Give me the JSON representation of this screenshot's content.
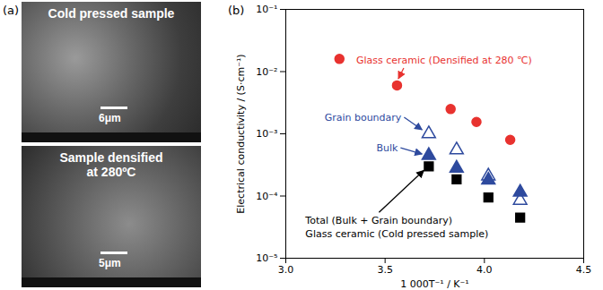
{
  "figure": {
    "panel_label": "(a)",
    "images": [
      {
        "title": [
          "Cold pressed sample"
        ],
        "scale_bar": "6μm"
      },
      {
        "title": [
          "Sample densified",
          "at 280ºC"
        ],
        "scale_bar": "5μm"
      }
    ]
  },
  "chart_data": {
    "type": "scatter",
    "panel_label": "(b)",
    "x_label": "1 000T⁻¹ / K⁻¹",
    "y_label": "Electrical conductivity / (S·cm⁻¹)",
    "log": "y",
    "xlim": [
      3.0,
      4.5
    ],
    "xticks": [
      {
        "value": 3.0,
        "label": "3.0"
      },
      {
        "value": 3.5,
        "label": "3.5"
      },
      {
        "value": 4.0,
        "label": "4.0"
      },
      {
        "value": 4.5,
        "label": "4.5"
      }
    ],
    "ylim": [
      1e-05,
      0.1
    ],
    "yticks": [
      {
        "value": 1e-05,
        "label": "10⁻⁵"
      },
      {
        "value": 0.0001,
        "label": "10⁻⁴"
      },
      {
        "value": 0.001,
        "label": "10⁻³"
      },
      {
        "value": 0.01,
        "label": "10⁻²"
      },
      {
        "value": 0.1,
        "label": "10⁻¹"
      }
    ],
    "series": [
      {
        "name": "Glass ceramic (Densified at 280 ℃)",
        "color": "#e8322f",
        "marker": "circle",
        "x": [
          3.27,
          3.56,
          3.83,
          3.96,
          4.13
        ],
        "values": [
          0.016,
          0.006,
          0.0025,
          0.00155,
          0.0008
        ]
      },
      {
        "name": "Grain boundary",
        "color": "#2e4a9e",
        "marker": "triangle-open",
        "x": [
          3.72,
          3.86,
          4.02,
          4.18
        ],
        "values": [
          0.001,
          0.00055,
          0.00021,
          8.5e-05
        ]
      },
      {
        "name": "Bulk",
        "color": "#2e4a9e",
        "marker": "triangle",
        "x": [
          3.72,
          3.86,
          4.02,
          4.18
        ],
        "values": [
          0.00045,
          0.00028,
          0.00018,
          0.000115
        ]
      },
      {
        "name": "Total (Bulk + Grain boundary)",
        "color": "#000000",
        "marker": "square",
        "x": [
          3.72,
          3.86,
          4.02,
          4.18
        ],
        "values": [
          0.0003,
          0.000185,
          9.5e-05,
          4.5e-05
        ]
      }
    ],
    "annotations": [
      {
        "text": "Glass ceramic (Cold pressed sample)",
        "color": "#000000"
      }
    ]
  }
}
